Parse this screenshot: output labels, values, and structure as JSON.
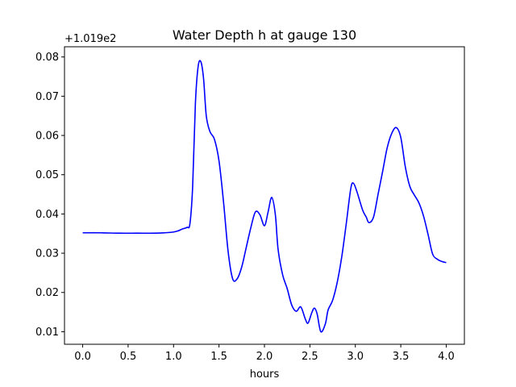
{
  "chart_data": {
    "type": "line",
    "title": "Water Depth h at gauge 130",
    "xlabel": "hours",
    "ylabel": "",
    "offset_label": "+1.019e2",
    "xlim": [
      -0.2,
      4.2
    ],
    "ylim": [
      0.0068,
      0.0826
    ],
    "x_ticks": [
      0.0,
      0.5,
      1.0,
      1.5,
      2.0,
      2.5,
      3.0,
      3.5,
      4.0
    ],
    "x_tick_labels": [
      "0.0",
      "0.5",
      "1.0",
      "1.5",
      "2.0",
      "2.5",
      "3.0",
      "3.5",
      "4.0"
    ],
    "y_ticks": [
      0.01,
      0.02,
      0.03,
      0.04,
      0.05,
      0.06,
      0.07,
      0.08
    ],
    "y_tick_labels": [
      "0.01",
      "0.02",
      "0.03",
      "0.04",
      "0.05",
      "0.06",
      "0.07",
      "0.08"
    ],
    "grid": false,
    "line_color": "#0000ff",
    "series": [
      {
        "points": [
          [
            0.0,
            0.0352
          ],
          [
            0.2,
            0.0352
          ],
          [
            0.4,
            0.0351
          ],
          [
            0.6,
            0.0351
          ],
          [
            0.8,
            0.0351
          ],
          [
            0.9,
            0.0352
          ],
          [
            1.0,
            0.0354
          ],
          [
            1.05,
            0.0357
          ],
          [
            1.1,
            0.0362
          ],
          [
            1.15,
            0.0366
          ],
          [
            1.18,
            0.0375
          ],
          [
            1.21,
            0.047
          ],
          [
            1.24,
            0.068
          ],
          [
            1.27,
            0.0775
          ],
          [
            1.3,
            0.0788
          ],
          [
            1.33,
            0.0745
          ],
          [
            1.36,
            0.065
          ],
          [
            1.4,
            0.061
          ],
          [
            1.45,
            0.059
          ],
          [
            1.5,
            0.0535
          ],
          [
            1.55,
            0.043
          ],
          [
            1.6,
            0.0305
          ],
          [
            1.65,
            0.0235
          ],
          [
            1.7,
            0.0235
          ],
          [
            1.75,
            0.0265
          ],
          [
            1.8,
            0.0315
          ],
          [
            1.85,
            0.0365
          ],
          [
            1.9,
            0.0405
          ],
          [
            1.95,
            0.0398
          ],
          [
            2.0,
            0.037
          ],
          [
            2.04,
            0.0405
          ],
          [
            2.08,
            0.0442
          ],
          [
            2.12,
            0.0398
          ],
          [
            2.15,
            0.031
          ],
          [
            2.2,
            0.0245
          ],
          [
            2.25,
            0.021
          ],
          [
            2.3,
            0.0168
          ],
          [
            2.35,
            0.0152
          ],
          [
            2.4,
            0.0163
          ],
          [
            2.45,
            0.0132
          ],
          [
            2.48,
            0.0122
          ],
          [
            2.52,
            0.0148
          ],
          [
            2.55,
            0.016
          ],
          [
            2.58,
            0.0145
          ],
          [
            2.62,
            0.01
          ],
          [
            2.67,
            0.012
          ],
          [
            2.7,
            0.0155
          ],
          [
            2.75,
            0.018
          ],
          [
            2.8,
            0.0225
          ],
          [
            2.85,
            0.029
          ],
          [
            2.9,
            0.0375
          ],
          [
            2.95,
            0.0465
          ],
          [
            2.98,
            0.0478
          ],
          [
            3.02,
            0.0455
          ],
          [
            3.08,
            0.041
          ],
          [
            3.12,
            0.0392
          ],
          [
            3.15,
            0.0378
          ],
          [
            3.2,
            0.0392
          ],
          [
            3.25,
            0.045
          ],
          [
            3.3,
            0.0508
          ],
          [
            3.35,
            0.0568
          ],
          [
            3.4,
            0.0605
          ],
          [
            3.45,
            0.062
          ],
          [
            3.5,
            0.0595
          ],
          [
            3.55,
            0.052
          ],
          [
            3.6,
            0.047
          ],
          [
            3.65,
            0.0448
          ],
          [
            3.7,
            0.0428
          ],
          [
            3.75,
            0.0395
          ],
          [
            3.8,
            0.0348
          ],
          [
            3.85,
            0.0298
          ],
          [
            3.9,
            0.0285
          ],
          [
            3.95,
            0.0279
          ],
          [
            4.0,
            0.0276
          ]
        ]
      }
    ]
  }
}
